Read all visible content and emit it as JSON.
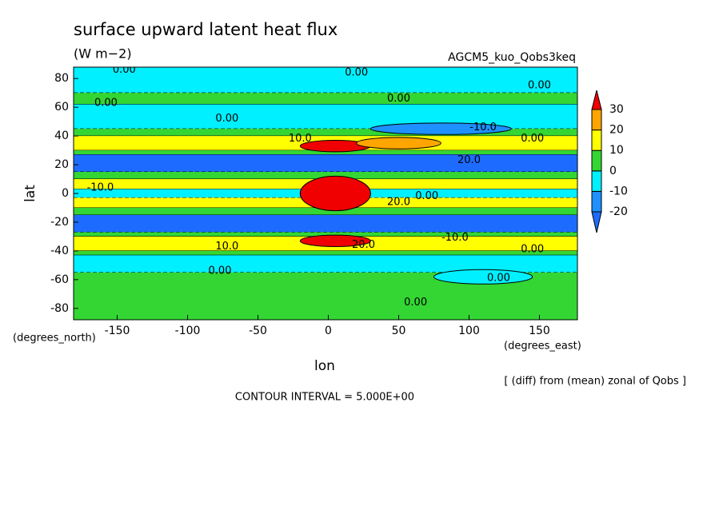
{
  "chart_data": {
    "type": "contour",
    "title": "surface upward latent heat flux",
    "subtitle": "(W m−2)",
    "run_label": "AGCM5_kuo_Qobs3keq",
    "x_label": "lon",
    "y_label": "lat",
    "x_unit": "(degrees_east)",
    "y_unit": "(degrees_north)",
    "note": "[ (diff) from (mean) zonal of Qobs ]",
    "contour_interval": "CONTOUR INTERVAL = 5.000E+00",
    "xlim": [
      -181,
      177
    ],
    "ylim": [
      -87.9,
      87.9
    ],
    "xticks": [
      -150,
      -100,
      -50,
      0,
      50,
      100,
      150
    ],
    "yticks": [
      -80,
      -60,
      -40,
      -20,
      0,
      20,
      40,
      60,
      80
    ],
    "levels": [
      -20,
      -10,
      0,
      10,
      20,
      30
    ],
    "colors": [
      "#1e6cff",
      "#1e90ff",
      "#00f0ff",
      "#33d633",
      "#ffff00",
      "#ffa500",
      "#f00000"
    ],
    "bands": [
      {
        "lat": [
          70,
          87.9
        ],
        "value": -5
      },
      {
        "lat": [
          62,
          70
        ],
        "value": 5
      },
      {
        "lat": [
          45,
          62
        ],
        "value": -5
      },
      {
        "lat": [
          40,
          45
        ],
        "value": 5
      },
      {
        "lat": [
          30,
          40
        ],
        "value": 15
      },
      {
        "lat": [
          27,
          30
        ],
        "value": 5
      },
      {
        "lat": [
          15,
          27
        ],
        "value": -25
      },
      {
        "lat": [
          10,
          15
        ],
        "value": 5
      },
      {
        "lat": [
          3,
          10
        ],
        "value": 15
      },
      {
        "lat": [
          -3,
          3
        ],
        "value": -5
      },
      {
        "lat": [
          -10,
          -3
        ],
        "value": 15
      },
      {
        "lat": [
          -15,
          -10
        ],
        "value": 5
      },
      {
        "lat": [
          -27,
          -15
        ],
        "value": -25
      },
      {
        "lat": [
          -30,
          -27
        ],
        "value": 5
      },
      {
        "lat": [
          -40,
          -30
        ],
        "value": 15
      },
      {
        "lat": [
          -43,
          -40
        ],
        "value": 5
      },
      {
        "lat": [
          -55,
          -43
        ],
        "value": -5
      },
      {
        "lat": [
          -87.9,
          -55
        ],
        "value": 5
      }
    ],
    "blobs": [
      {
        "lon": 5,
        "lat": 0,
        "rlon": 25,
        "rlat": 12,
        "value": 35
      },
      {
        "lon": 5,
        "lat": 33,
        "rlon": 25,
        "rlat": 4,
        "value": 35
      },
      {
        "lon": 5,
        "lat": -33,
        "rlon": 25,
        "rlat": 4,
        "value": 35
      },
      {
        "lon": 80,
        "lat": 45,
        "rlon": 50,
        "rlat": 4,
        "value": -15
      },
      {
        "lon": 50,
        "lat": 35,
        "rlon": 30,
        "rlat": 4,
        "value": 25
      },
      {
        "lon": 110,
        "lat": -58,
        "rlon": 35,
        "rlat": 5,
        "value": -5
      }
    ],
    "contour_labels": [
      {
        "text": "0.00",
        "lon": -145,
        "lat": 86
      },
      {
        "text": "0.00",
        "lon": 20,
        "lat": 84
      },
      {
        "text": "0.00",
        "lon": 150,
        "lat": 75
      },
      {
        "text": "0.00",
        "lon": -158,
        "lat": 63
      },
      {
        "text": "0.00",
        "lon": 50,
        "lat": 66
      },
      {
        "text": "0.00",
        "lon": -72,
        "lat": 52
      },
      {
        "text": "-10.0",
        "lon": 110,
        "lat": 46
      },
      {
        "text": "10.0",
        "lon": -20,
        "lat": 38
      },
      {
        "text": "20.0",
        "lon": 100,
        "lat": 23
      },
      {
        "text": "0.00",
        "lon": 145,
        "lat": 38
      },
      {
        "text": "-10.0",
        "lon": -162,
        "lat": 4
      },
      {
        "text": "20.0",
        "lon": 50,
        "lat": -6
      },
      {
        "text": "0.00",
        "lon": 70,
        "lat": -2
      },
      {
        "text": "-10.0",
        "lon": 90,
        "lat": -31
      },
      {
        "text": "20.0",
        "lon": 25,
        "lat": -36
      },
      {
        "text": "0.00",
        "lon": 145,
        "lat": -39
      },
      {
        "text": "10.0",
        "lon": -72,
        "lat": -37
      },
      {
        "text": "0.00",
        "lon": -77,
        "lat": -54
      },
      {
        "text": "0.00",
        "lon": 121,
        "lat": -59
      },
      {
        "text": "0.00",
        "lon": 62,
        "lat": -76
      }
    ]
  }
}
